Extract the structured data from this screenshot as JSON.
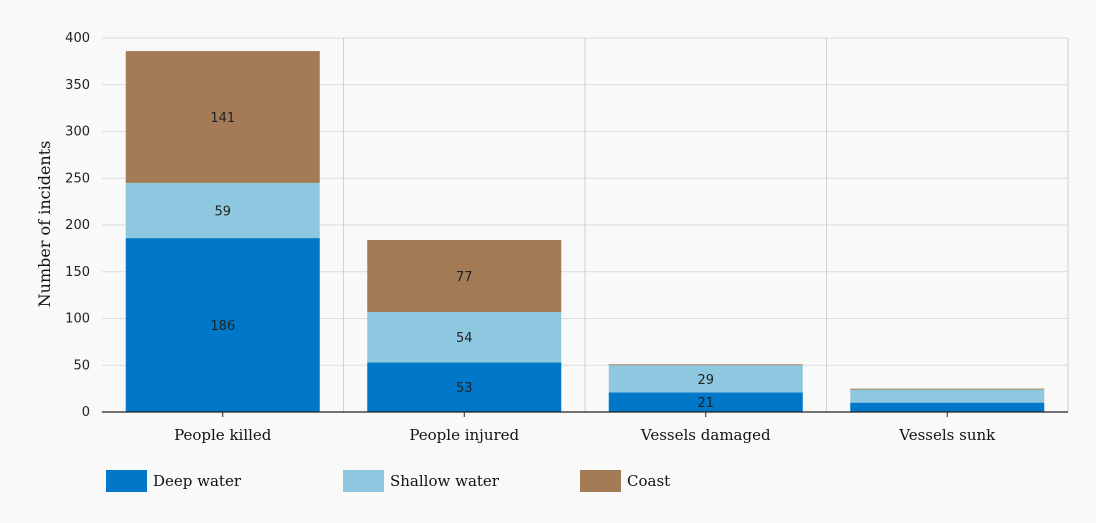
{
  "chart_data": {
    "type": "bar",
    "stacked": true,
    "title": "",
    "xlabel": "",
    "ylabel": "Number of incidents",
    "ylim": [
      0,
      400
    ],
    "yticks": [
      0,
      50,
      100,
      150,
      200,
      250,
      300,
      350,
      400
    ],
    "grid": true,
    "legend_position": "bottom-left",
    "categories": [
      "People killed",
      "People injured",
      "Vessels damaged",
      "Vessels sunk"
    ],
    "series": [
      {
        "name": "Deep water",
        "color": "#0077c8",
        "values": [
          186,
          53,
          21,
          10
        ],
        "labels": [
          "186",
          "53",
          "21",
          ""
        ]
      },
      {
        "name": "Shallow water",
        "color": "#8ec8e0",
        "values": [
          59,
          54,
          29,
          14
        ],
        "labels": [
          "59",
          "54",
          "29",
          ""
        ]
      },
      {
        "name": "Coast",
        "color": "#a37b57",
        "values": [
          141,
          77,
          1,
          1
        ],
        "labels": [
          "141",
          "77",
          "",
          ""
        ]
      }
    ]
  }
}
